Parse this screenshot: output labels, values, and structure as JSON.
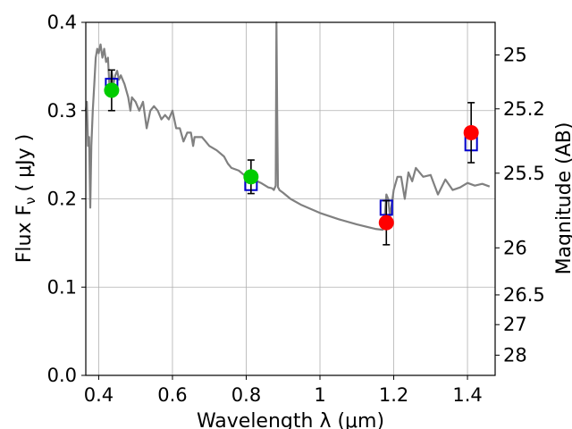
{
  "chart_data": {
    "type": "scatter",
    "xlabel": "Wavelength  λ (μm)",
    "ylabel": "Flux  F",
    "ylabel_sub": "ν",
    "ylabel_unit": "( μJy )",
    "y2label": "Magnitude (AB)",
    "xlim": [
      0.365,
      1.475
    ],
    "ylim": [
      0,
      0.4
    ],
    "x_ticks": [
      0.4,
      0.6,
      0.8,
      1.0,
      1.2,
      1.4
    ],
    "x_tick_labels": [
      "0.4",
      "0.6",
      "0.8",
      "1",
      "1.2",
      "1.4"
    ],
    "y_ticks": [
      0.0,
      0.1,
      0.2,
      0.3,
      0.4
    ],
    "y_tick_labels": [
      "0.0",
      "0.1",
      "0.2",
      "0.3",
      "0.4"
    ],
    "y2_ticks": [
      {
        "label": "25",
        "flux": 0.3631
      },
      {
        "label": "25.2",
        "flux": 0.302
      },
      {
        "label": "25.5",
        "flux": 0.2291
      },
      {
        "label": "26",
        "flux": 0.1445
      },
      {
        "label": "26.5",
        "flux": 0.0912
      },
      {
        "label": "27",
        "flux": 0.0575
      },
      {
        "label": "28",
        "flux": 0.0229
      }
    ],
    "grid": true,
    "model_spectrum": {
      "color": "#808080",
      "x": [
        0.365,
        0.368,
        0.371,
        0.374,
        0.377,
        0.38,
        0.384,
        0.388,
        0.392,
        0.396,
        0.4,
        0.405,
        0.41,
        0.415,
        0.42,
        0.425,
        0.43,
        0.435,
        0.44,
        0.445,
        0.45,
        0.455,
        0.46,
        0.47,
        0.48,
        0.486,
        0.49,
        0.5,
        0.51,
        0.52,
        0.53,
        0.54,
        0.55,
        0.56,
        0.57,
        0.58,
        0.59,
        0.6,
        0.61,
        0.62,
        0.63,
        0.64,
        0.65,
        0.656,
        0.66,
        0.67,
        0.68,
        0.69,
        0.7,
        0.72,
        0.74,
        0.75,
        0.76,
        0.78,
        0.8,
        0.82,
        0.84,
        0.86,
        0.87,
        0.875,
        0.88,
        0.882,
        0.884,
        0.886,
        0.888,
        0.89,
        0.9,
        0.92,
        0.95,
        1.0,
        1.05,
        1.1,
        1.15,
        1.17,
        1.175,
        1.18,
        1.185,
        1.19,
        1.2,
        1.21,
        1.22,
        1.23,
        1.24,
        1.25,
        1.26,
        1.28,
        1.3,
        1.32,
        1.34,
        1.36,
        1.38,
        1.4,
        1.42,
        1.44,
        1.46
      ],
      "y": [
        0.3,
        0.31,
        0.26,
        0.27,
        0.19,
        0.26,
        0.3,
        0.33,
        0.36,
        0.37,
        0.365,
        0.375,
        0.36,
        0.37,
        0.355,
        0.36,
        0.32,
        0.345,
        0.33,
        0.34,
        0.345,
        0.335,
        0.34,
        0.33,
        0.315,
        0.3,
        0.315,
        0.31,
        0.3,
        0.31,
        0.28,
        0.3,
        0.305,
        0.3,
        0.29,
        0.295,
        0.29,
        0.3,
        0.28,
        0.28,
        0.265,
        0.275,
        0.275,
        0.26,
        0.27,
        0.27,
        0.27,
        0.265,
        0.26,
        0.255,
        0.248,
        0.24,
        0.235,
        0.232,
        0.225,
        0.222,
        0.218,
        0.213,
        0.212,
        0.21,
        0.215,
        0.4,
        0.3,
        0.213,
        0.212,
        0.21,
        0.207,
        0.2,
        0.193,
        0.184,
        0.177,
        0.171,
        0.166,
        0.165,
        0.175,
        0.205,
        0.2,
        0.18,
        0.21,
        0.225,
        0.225,
        0.2,
        0.23,
        0.22,
        0.235,
        0.225,
        0.227,
        0.205,
        0.222,
        0.21,
        0.213,
        0.218,
        0.215,
        0.217,
        0.214
      ]
    },
    "model_photometry": {
      "color": "#0000cc",
      "marker": "open-square",
      "x": [
        0.435,
        0.813,
        1.18,
        1.41
      ],
      "y": [
        0.328,
        0.218,
        0.19,
        0.263
      ]
    },
    "observed": [
      {
        "x": 0.435,
        "y": 0.323,
        "err": 0.023,
        "color": "#00cc00"
      },
      {
        "x": 0.813,
        "y": 0.225,
        "err": 0.019,
        "color": "#00cc00"
      },
      {
        "x": 1.18,
        "y": 0.173,
        "err": 0.025,
        "color": "#ff0000"
      },
      {
        "x": 1.41,
        "y": 0.275,
        "err": 0.034,
        "color": "#ff0000"
      }
    ]
  }
}
